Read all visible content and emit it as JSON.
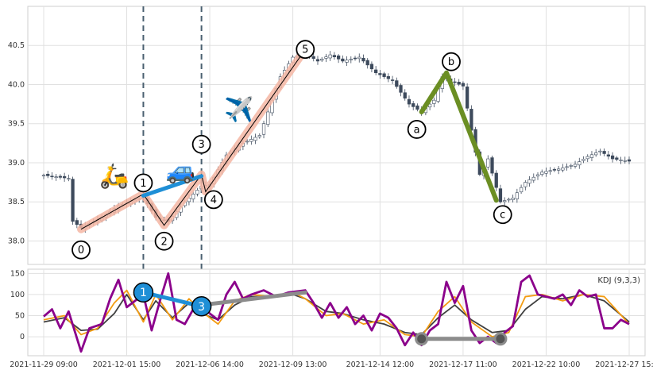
{
  "chart_data": [
    {
      "type": "candlestick",
      "panel": "price",
      "title": "",
      "xlabel": "",
      "ylabel": "",
      "ylim": [
        37.7,
        41.0
      ],
      "yticks": [
        38.0,
        38.5,
        39.0,
        39.5,
        40.0,
        40.5
      ],
      "ytick_labels": [
        "38.0",
        "38.5",
        "39.0",
        "39.5",
        "40.0",
        "40.5"
      ],
      "x_tick_labels": [
        "2021-11-29 09:00",
        "2021-12-01 15:00",
        "2021-12-06 14:00",
        "2021-12-09 13:00",
        "2021-12-14 12:00",
        "2021-12-17 11:00",
        "2021-12-22 10:00",
        "2021-12-27 15:00"
      ],
      "grid": true,
      "candle_colors": {
        "up": "#ffffff",
        "down": "#3d4a5c",
        "outline": "#3d4a5c"
      },
      "vertical_markers": [
        {
          "label": "",
          "x_index": 24,
          "color": "#4a6070"
        },
        {
          "label": "",
          "x_index": 38,
          "color": "#4a6070"
        }
      ],
      "price_path_approx": [
        [
          0,
          38.84
        ],
        [
          6,
          38.8
        ],
        [
          7,
          38.25
        ],
        [
          9,
          38.17
        ],
        [
          14,
          38.3
        ],
        [
          18,
          38.45
        ],
        [
          24,
          38.56
        ],
        [
          27,
          38.3
        ],
        [
          30,
          38.25
        ],
        [
          34,
          38.5
        ],
        [
          38,
          38.7
        ],
        [
          40,
          38.72
        ],
        [
          44,
          39.1
        ],
        [
          48,
          39.25
        ],
        [
          52,
          39.35
        ],
        [
          57,
          40.1
        ],
        [
          60,
          40.35
        ],
        [
          63,
          40.4
        ],
        [
          66,
          40.3
        ],
        [
          69,
          40.38
        ],
        [
          72,
          40.3
        ],
        [
          76,
          40.35
        ],
        [
          80,
          40.15
        ],
        [
          84,
          40.05
        ],
        [
          88,
          39.75
        ],
        [
          91,
          39.65
        ],
        [
          94,
          39.8
        ],
        [
          96,
          40.1
        ],
        [
          98,
          40.05
        ],
        [
          101,
          39.98
        ],
        [
          105,
          38.85
        ],
        [
          107,
          39.05
        ],
        [
          110,
          38.5
        ],
        [
          113,
          38.55
        ],
        [
          116,
          38.75
        ],
        [
          120,
          38.88
        ],
        [
          124,
          38.92
        ],
        [
          128,
          38.98
        ],
        [
          131,
          39.08
        ],
        [
          134,
          39.15
        ],
        [
          137,
          39.05
        ],
        [
          141,
          39.02
        ]
      ],
      "waves": [
        {
          "name": "impulse",
          "color": "#f4b6a3",
          "points": [
            {
              "label": "0",
              "x_index": 9,
              "y": 38.15
            },
            {
              "label": "1",
              "x_index": 24,
              "y": 38.6
            },
            {
              "label": "2",
              "x_index": 29,
              "y": 38.2
            },
            {
              "label": "3",
              "x_index": 38,
              "y": 38.85
            },
            {
              "label": "4",
              "x_index": 39,
              "y": 38.63
            },
            {
              "label": "5",
              "x_index": 63,
              "y": 40.45
            }
          ]
        },
        {
          "name": "corrective",
          "color": "#6b8e23",
          "points": [
            {
              "label": "a",
              "x_index": 91,
              "y": 39.65
            },
            {
              "label": "b",
              "x_index": 97,
              "y": 40.15
            },
            {
              "label": "c",
              "x_index": 109,
              "y": 38.52
            }
          ]
        },
        {
          "name": "link",
          "color": "#1f8fd6",
          "points": [
            {
              "label": "",
              "x_index": 24,
              "y": 38.58
            },
            {
              "label": "",
              "x_index": 38,
              "y": 38.83
            }
          ]
        }
      ],
      "annotations": [
        {
          "emoji": "🛵",
          "x_index": 17,
          "y": 38.85
        },
        {
          "emoji": "🚙",
          "x_index": 33,
          "y": 38.92
        },
        {
          "emoji": "✈️",
          "x_index": 47,
          "y": 39.7
        }
      ]
    },
    {
      "type": "line",
      "panel": "indicator",
      "legend_label": "KDJ (9,3,3)",
      "ylim": [
        -45,
        160
      ],
      "yticks": [
        0,
        50,
        100,
        150
      ],
      "ytick_labels": [
        "0",
        "50",
        "100",
        "150"
      ],
      "grid": true,
      "series": [
        {
          "color": "#404040",
          "values": [
            [
              0,
              35
            ],
            [
              5,
              45
            ],
            [
              9,
              15
            ],
            [
              13,
              18
            ],
            [
              17,
              55
            ],
            [
              20,
              100
            ],
            [
              24,
              40
            ],
            [
              27,
              85
            ],
            [
              31,
              45
            ],
            [
              35,
              80
            ],
            [
              38,
              55
            ],
            [
              42,
              40
            ],
            [
              46,
              75
            ],
            [
              50,
              95
            ],
            [
              55,
              95
            ],
            [
              60,
              100
            ],
            [
              63,
              90
            ],
            [
              68,
              60
            ],
            [
              72,
              55
            ],
            [
              77,
              40
            ],
            [
              82,
              30
            ],
            [
              87,
              10
            ],
            [
              91,
              5
            ],
            [
              95,
              45
            ],
            [
              99,
              75
            ],
            [
              103,
              40
            ],
            [
              108,
              10
            ],
            [
              112,
              15
            ],
            [
              116,
              65
            ],
            [
              120,
              95
            ],
            [
              125,
              90
            ],
            [
              130,
              100
            ],
            [
              135,
              85
            ],
            [
              141,
              35
            ]
          ]
        },
        {
          "color": "#f39c12",
          "values": [
            [
              0,
              40
            ],
            [
              5,
              50
            ],
            [
              9,
              5
            ],
            [
              13,
              20
            ],
            [
              17,
              80
            ],
            [
              20,
              110
            ],
            [
              24,
              35
            ],
            [
              27,
              100
            ],
            [
              31,
              40
            ],
            [
              35,
              90
            ],
            [
              38,
              60
            ],
            [
              42,
              30
            ],
            [
              46,
              85
            ],
            [
              50,
              100
            ],
            [
              55,
              95
            ],
            [
              60,
              105
            ],
            [
              63,
              90
            ],
            [
              68,
              50
            ],
            [
              72,
              55
            ],
            [
              77,
              30
            ],
            [
              82,
              40
            ],
            [
              87,
              5
            ],
            [
              91,
              0
            ],
            [
              95,
              60
            ],
            [
              99,
              95
            ],
            [
              103,
              35
            ],
            [
              108,
              0
            ],
            [
              112,
              10
            ],
            [
              116,
              95
            ],
            [
              120,
              100
            ],
            [
              125,
              85
            ],
            [
              130,
              100
            ],
            [
              135,
              95
            ],
            [
              141,
              30
            ]
          ]
        },
        {
          "color": "#8b008b",
          "values": [
            [
              0,
              48
            ],
            [
              2,
              65
            ],
            [
              4,
              20
            ],
            [
              6,
              60
            ],
            [
              9,
              -35
            ],
            [
              11,
              20
            ],
            [
              14,
              30
            ],
            [
              16,
              90
            ],
            [
              18,
              135
            ],
            [
              20,
              70
            ],
            [
              22,
              85
            ],
            [
              24,
              100
            ],
            [
              26,
              15
            ],
            [
              28,
              85
            ],
            [
              30,
              150
            ],
            [
              32,
              40
            ],
            [
              34,
              30
            ],
            [
              36,
              65
            ],
            [
              38,
              75
            ],
            [
              40,
              55
            ],
            [
              42,
              40
            ],
            [
              44,
              100
            ],
            [
              46,
              130
            ],
            [
              48,
              90
            ],
            [
              50,
              100
            ],
            [
              53,
              110
            ],
            [
              56,
              95
            ],
            [
              59,
              105
            ],
            [
              63,
              110
            ],
            [
              65,
              80
            ],
            [
              67,
              45
            ],
            [
              69,
              80
            ],
            [
              71,
              45
            ],
            [
              73,
              70
            ],
            [
              75,
              30
            ],
            [
              77,
              50
            ],
            [
              79,
              15
            ],
            [
              81,
              55
            ],
            [
              83,
              45
            ],
            [
              85,
              20
            ],
            [
              87,
              -20
            ],
            [
              89,
              10
            ],
            [
              91,
              -20
            ],
            [
              93,
              15
            ],
            [
              95,
              30
            ],
            [
              97,
              130
            ],
            [
              99,
              80
            ],
            [
              101,
              120
            ],
            [
              103,
              15
            ],
            [
              105,
              -15
            ],
            [
              107,
              0
            ],
            [
              109,
              -15
            ],
            [
              111,
              10
            ],
            [
              113,
              25
            ],
            [
              115,
              130
            ],
            [
              117,
              145
            ],
            [
              119,
              100
            ],
            [
              121,
              95
            ],
            [
              123,
              90
            ],
            [
              125,
              100
            ],
            [
              127,
              75
            ],
            [
              129,
              110
            ],
            [
              131,
              95
            ],
            [
              133,
              100
            ],
            [
              135,
              20
            ],
            [
              137,
              20
            ],
            [
              139,
              40
            ],
            [
              141,
              30
            ]
          ]
        }
      ],
      "overlays": [
        {
          "color": "#1f8fd6",
          "points": [
            [
              24,
              105
            ],
            [
              38,
              72
            ]
          ]
        },
        {
          "color": "#8c8c8c",
          "points": [
            [
              38,
              75
            ],
            [
              63,
              105
            ]
          ]
        },
        {
          "color": "#8c8c8c",
          "points": [
            [
              91,
              -5
            ],
            [
              110,
              -5
            ]
          ]
        }
      ],
      "markers": [
        {
          "label": "1",
          "x_index": 24,
          "y": 105,
          "color": "#1f8fd6"
        },
        {
          "label": "3",
          "x_index": 38,
          "y": 72,
          "color": "#1f8fd6"
        },
        {
          "label": "",
          "x_index": 91,
          "y": -5,
          "color": "#8c8c8c"
        },
        {
          "label": "",
          "x_index": 110,
          "y": -5,
          "color": "#8c8c8c"
        }
      ]
    }
  ]
}
